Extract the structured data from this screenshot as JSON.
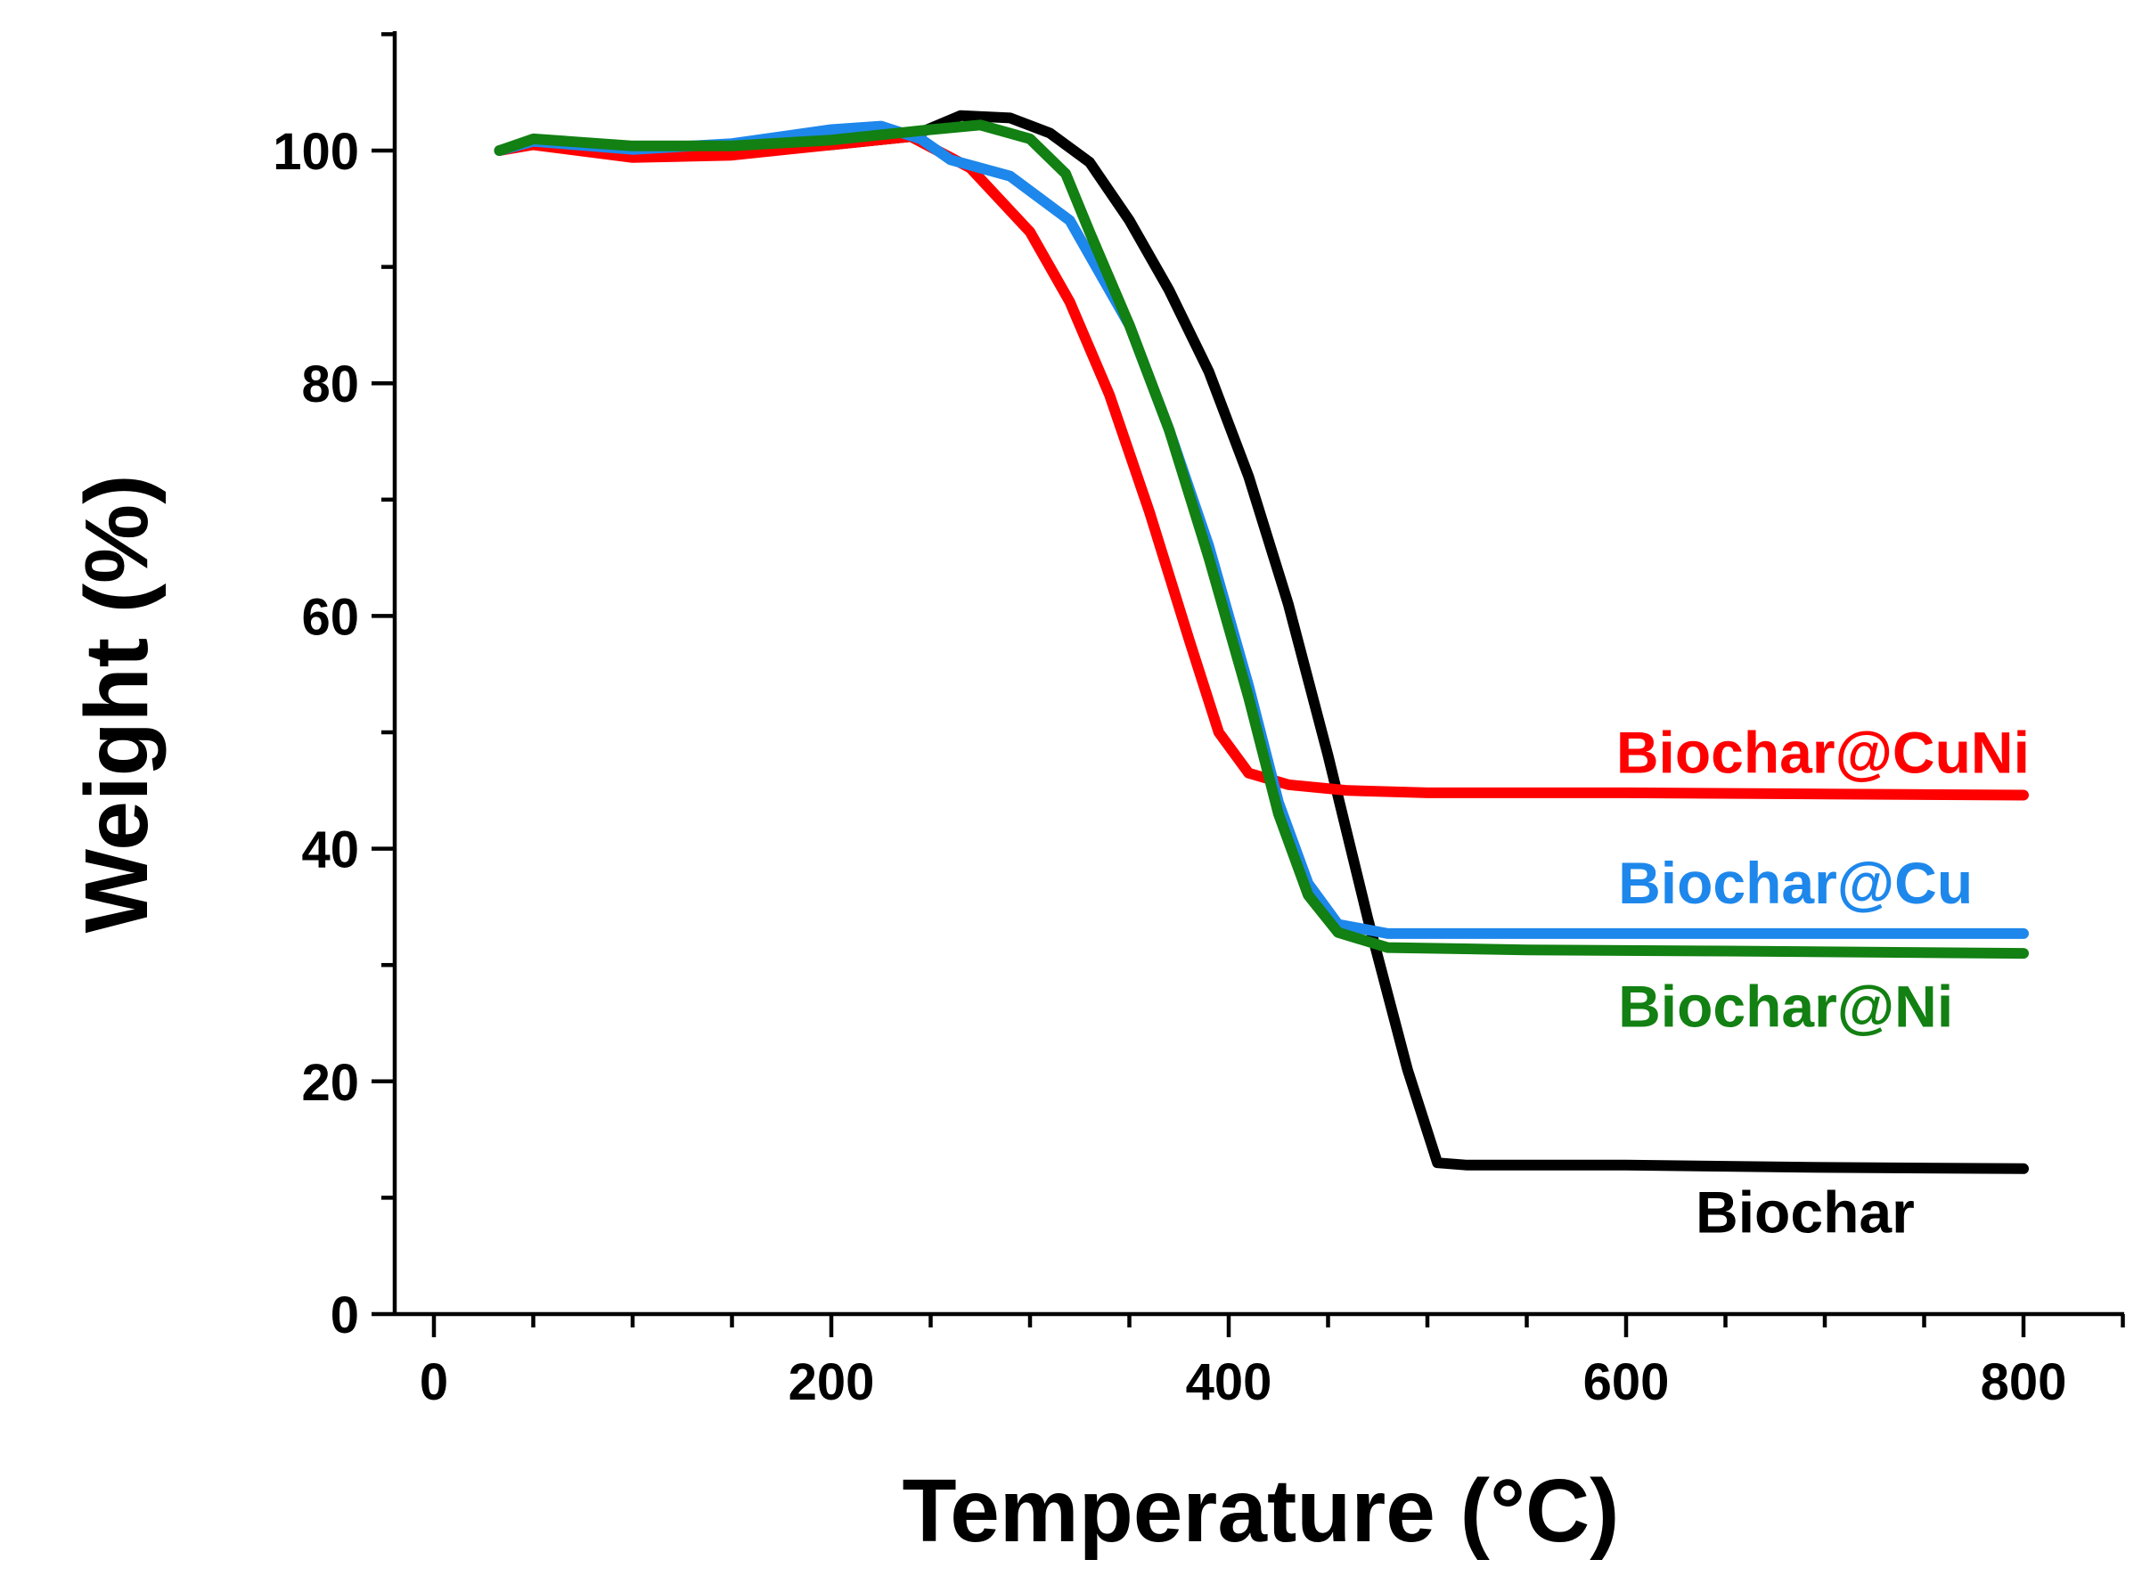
{
  "chart_data": {
    "type": "line",
    "title": "",
    "xlabel": "Temperature (°C)",
    "ylabel": "Weight (%)",
    "xlim": [
      -20,
      850
    ],
    "ylim": [
      0,
      110
    ],
    "x_ticks": [
      0,
      200,
      400,
      600,
      800
    ],
    "x_tick_labels": [
      "0",
      "200",
      "400",
      "600",
      "800"
    ],
    "y_ticks": [
      0,
      20,
      40,
      60,
      80,
      100
    ],
    "y_tick_labels": [
      "0",
      "20",
      "40",
      "60",
      "80",
      "100"
    ],
    "x_minor_step": 50,
    "y_minor_step": 10,
    "grid": false,
    "series": [
      {
        "name": "Biochar",
        "label": "Biochar",
        "color": "#000000",
        "label_x": 635,
        "label_y": 7,
        "points": [
          [
            33,
            100
          ],
          [
            50,
            100.8
          ],
          [
            100,
            99.8
          ],
          [
            150,
            99.9
          ],
          [
            200,
            100.5
          ],
          [
            240,
            101.2
          ],
          [
            265,
            103.0
          ],
          [
            290,
            102.8
          ],
          [
            310,
            101.5
          ],
          [
            330,
            99
          ],
          [
            350,
            94
          ],
          [
            370,
            88
          ],
          [
            390,
            81
          ],
          [
            410,
            72
          ],
          [
            430,
            61
          ],
          [
            450,
            48
          ],
          [
            470,
            34
          ],
          [
            490,
            21
          ],
          [
            505,
            13
          ],
          [
            520,
            12.8
          ],
          [
            560,
            12.8
          ],
          [
            600,
            12.8
          ],
          [
            700,
            12.6
          ],
          [
            800,
            12.5
          ]
        ]
      },
      {
        "name": "Biochar@CuNi",
        "label": "Biochar@CuNi",
        "color": "#ff0000",
        "label_x": 595,
        "label_y": 46.5,
        "points": [
          [
            33,
            100
          ],
          [
            50,
            100.5
          ],
          [
            100,
            99.4
          ],
          [
            150,
            99.6
          ],
          [
            200,
            100.5
          ],
          [
            240,
            101.2
          ],
          [
            270,
            98.5
          ],
          [
            300,
            93
          ],
          [
            320,
            87
          ],
          [
            340,
            79
          ],
          [
            360,
            69
          ],
          [
            380,
            58
          ],
          [
            395,
            50
          ],
          [
            410,
            46.5
          ],
          [
            430,
            45.5
          ],
          [
            460,
            45
          ],
          [
            500,
            44.8
          ],
          [
            600,
            44.8
          ],
          [
            700,
            44.7
          ],
          [
            800,
            44.6
          ]
        ]
      },
      {
        "name": "Biochar@Cu",
        "label": "Biochar@Cu",
        "color": "#1e87eb",
        "label_x": 596,
        "label_y": 35.3,
        "points": [
          [
            33,
            100
          ],
          [
            50,
            100.8
          ],
          [
            100,
            100.1
          ],
          [
            150,
            100.6
          ],
          [
            200,
            101.8
          ],
          [
            225,
            102.1
          ],
          [
            245,
            101
          ],
          [
            260,
            99.2
          ],
          [
            290,
            97.8
          ],
          [
            320,
            94
          ],
          [
            350,
            85
          ],
          [
            370,
            76
          ],
          [
            390,
            66
          ],
          [
            410,
            54
          ],
          [
            425,
            44
          ],
          [
            440,
            37
          ],
          [
            455,
            33.5
          ],
          [
            480,
            32.7
          ],
          [
            550,
            32.7
          ],
          [
            650,
            32.7
          ],
          [
            800,
            32.7
          ]
        ]
      },
      {
        "name": "Biochar@Ni",
        "label": "Biochar@Ni",
        "color": "#128012",
        "label_x": 596,
        "label_y": 24.7,
        "points": [
          [
            33,
            100
          ],
          [
            50,
            101
          ],
          [
            100,
            100.4
          ],
          [
            150,
            100.4
          ],
          [
            200,
            100.9
          ],
          [
            250,
            101.8
          ],
          [
            275,
            102.2
          ],
          [
            300,
            101
          ],
          [
            318,
            98
          ],
          [
            330,
            93
          ],
          [
            350,
            85
          ],
          [
            370,
            76
          ],
          [
            390,
            65
          ],
          [
            410,
            53
          ],
          [
            425,
            43
          ],
          [
            440,
            36
          ],
          [
            455,
            32.8
          ],
          [
            480,
            31.5
          ],
          [
            550,
            31.3
          ],
          [
            650,
            31.2
          ],
          [
            800,
            31
          ]
        ]
      }
    ]
  }
}
